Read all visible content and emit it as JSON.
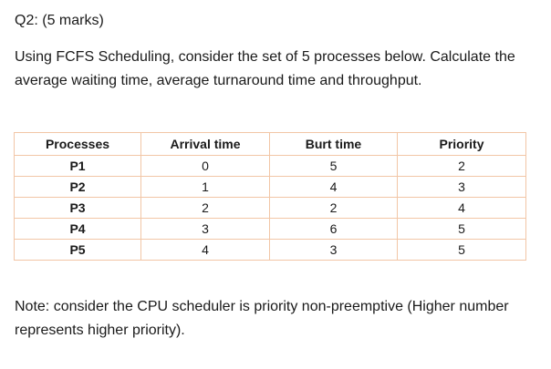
{
  "question": {
    "heading": "Q2: (5 marks)",
    "prompt": "Using FCFS Scheduling, consider the set of 5 processes below. Calculate the average waiting time, average turnaround time and throughput."
  },
  "table": {
    "headers": [
      "Processes",
      "Arrival time",
      "Burt time",
      "Priority"
    ],
    "rows": [
      [
        "P1",
        "0",
        "5",
        "2"
      ],
      [
        "P2",
        "1",
        "4",
        "3"
      ],
      [
        "P3",
        "2",
        "2",
        "4"
      ],
      [
        "P4",
        "3",
        "6",
        "5"
      ],
      [
        "P5",
        "4",
        "3",
        "5"
      ]
    ],
    "border_color": "#f2c6a6"
  },
  "note": "Note: consider the CPU scheduler is priority non-preemptive (Higher number represents higher priority)."
}
